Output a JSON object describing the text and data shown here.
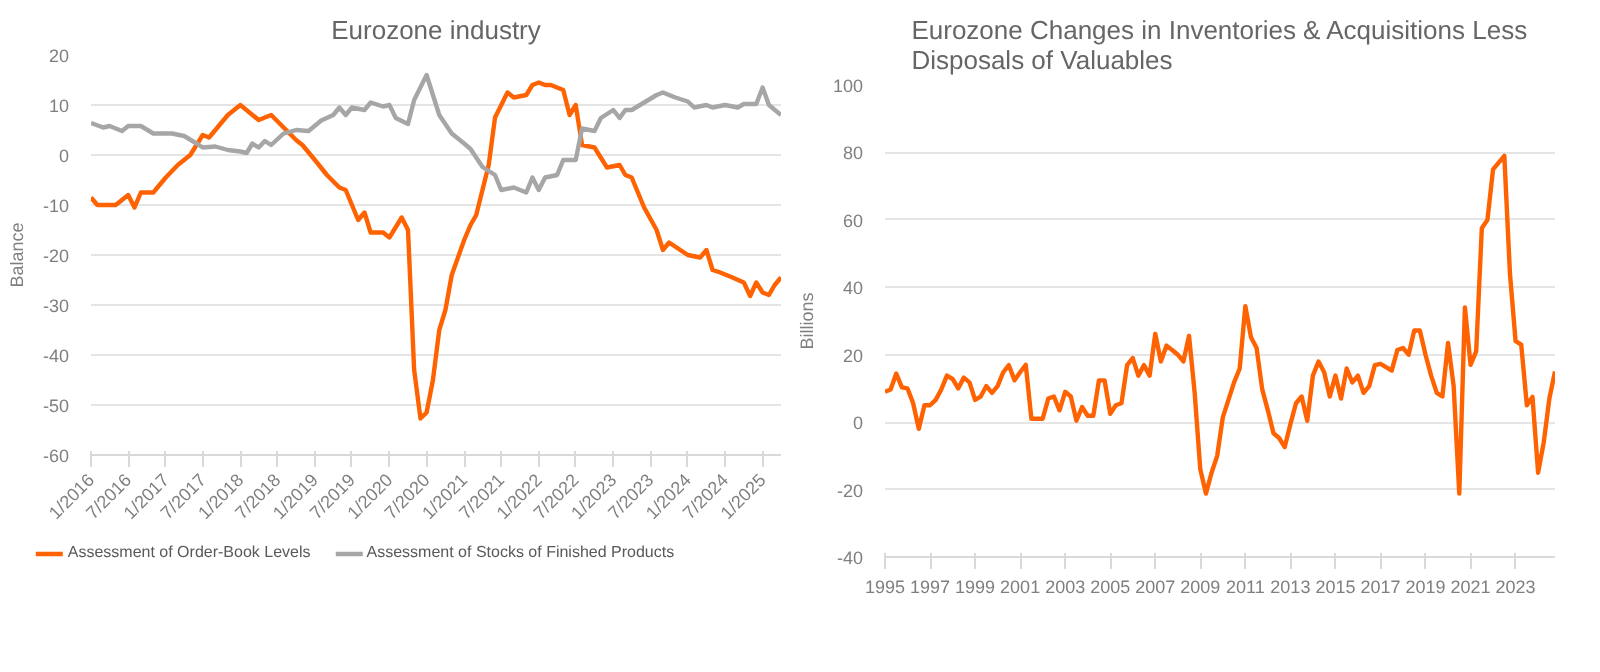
{
  "chart_data": [
    {
      "type": "line",
      "title": "Eurozone industry",
      "ylabel": "Balance",
      "ylim": [
        -60,
        20
      ],
      "yticks": [
        -60,
        -50,
        -40,
        -30,
        -20,
        -10,
        0,
        10,
        20
      ],
      "xlim": [
        "2016-01",
        "2025-04"
      ],
      "xticks": [
        {
          "value": "2016-01",
          "label": "1/2016"
        },
        {
          "value": "2016-07",
          "label": "7/2016"
        },
        {
          "value": "2017-01",
          "label": "1/2017"
        },
        {
          "value": "2017-07",
          "label": "7/2017"
        },
        {
          "value": "2018-01",
          "label": "1/2018"
        },
        {
          "value": "2018-07",
          "label": "7/2018"
        },
        {
          "value": "2019-01",
          "label": "1/2019"
        },
        {
          "value": "2019-07",
          "label": "7/2019"
        },
        {
          "value": "2020-01",
          "label": "1/2020"
        },
        {
          "value": "2020-07",
          "label": "7/2020"
        },
        {
          "value": "2021-01",
          "label": "1/2021"
        },
        {
          "value": "2021-07",
          "label": "7/2021"
        },
        {
          "value": "2022-01",
          "label": "1/2022"
        },
        {
          "value": "2022-07",
          "label": "7/2022"
        },
        {
          "value": "2023-01",
          "label": "1/2023"
        },
        {
          "value": "2023-07",
          "label": "7/2023"
        },
        {
          "value": "2024-01",
          "label": "1/2024"
        },
        {
          "value": "2024-07",
          "label": "7/2024"
        },
        {
          "value": "2025-01",
          "label": "1/2025"
        }
      ],
      "grid": "y",
      "legend": "bottom",
      "line_style": "solid",
      "marker": "none",
      "series": [
        {
          "name": "Assessment of Order-Book Levels",
          "color": "#ff6200",
          "x": [
            "2016-01",
            "2016-02",
            "2016-05",
            "2016-07",
            "2016-08",
            "2016-09",
            "2016-11",
            "2017-01",
            "2017-03",
            "2017-05",
            "2017-07",
            "2017-08",
            "2017-11",
            "2018-01",
            "2018-04",
            "2018-06",
            "2018-08",
            "2018-10",
            "2018-11",
            "2019-01",
            "2019-03",
            "2019-05",
            "2019-06",
            "2019-08",
            "2019-09",
            "2019-10",
            "2019-12",
            "2020-01",
            "2020-03",
            "2020-04",
            "2020-05",
            "2020-06",
            "2020-07",
            "2020-08",
            "2020-09",
            "2020-10",
            "2020-11",
            "2021-01",
            "2021-02",
            "2021-03",
            "2021-05",
            "2021-06",
            "2021-08",
            "2021-09",
            "2021-11",
            "2021-12",
            "2022-01",
            "2022-02",
            "2022-03",
            "2022-05",
            "2022-06",
            "2022-07",
            "2022-08",
            "2022-10",
            "2022-12",
            "2023-02",
            "2023-03",
            "2023-04",
            "2023-06",
            "2023-08",
            "2023-09",
            "2023-10",
            "2024-01",
            "2024-03",
            "2024-04",
            "2024-05",
            "2024-06",
            "2024-08",
            "2024-10",
            "2024-11",
            "2024-12",
            "2025-01",
            "2025-02",
            "2025-03",
            "2025-04"
          ],
          "values": [
            -8.5,
            -10,
            -10,
            -8,
            -10.5,
            -7.5,
            -7.5,
            -4.5,
            -2,
            0,
            4,
            3.5,
            8,
            10,
            7,
            8,
            5.5,
            3,
            2,
            -1,
            -4,
            -6.5,
            -7,
            -13,
            -11.5,
            -15.5,
            -15.5,
            -16.5,
            -12.5,
            -15,
            -43,
            -52.7,
            -51.5,
            -45,
            -35,
            -31,
            -24,
            -17,
            -14,
            -12,
            -2,
            7.5,
            12.5,
            11.5,
            12,
            14,
            14.5,
            14,
            14,
            13,
            8,
            10,
            2,
            1.5,
            -2.5,
            -2,
            -4,
            -4.5,
            -10.5,
            -15,
            -19,
            -17.5,
            -20,
            -20.5,
            -19,
            -23,
            -23.4,
            -24.4,
            -25.5,
            -28.2,
            -25.5,
            -27.5,
            -28,
            -26,
            -24.5
          ]
        },
        {
          "name": "Assessment of Stocks of Finished Products",
          "color": "#a6a6a6",
          "x": [
            "2016-01",
            "2016-03",
            "2016-04",
            "2016-06",
            "2016-07",
            "2016-09",
            "2016-11",
            "2017-02",
            "2017-04",
            "2017-06",
            "2017-07",
            "2017-09",
            "2017-11",
            "2018-01",
            "2018-02",
            "2018-03",
            "2018-04",
            "2018-05",
            "2018-06",
            "2018-08",
            "2018-10",
            "2018-12",
            "2019-02",
            "2019-04",
            "2019-05",
            "2019-06",
            "2019-07",
            "2019-09",
            "2019-10",
            "2019-12",
            "2020-01",
            "2020-02",
            "2020-04",
            "2020-05",
            "2020-07",
            "2020-09",
            "2020-11",
            "2021-01",
            "2021-02",
            "2021-04",
            "2021-06",
            "2021-07",
            "2021-09",
            "2021-11",
            "2021-12",
            "2022-01",
            "2022-02",
            "2022-04",
            "2022-05",
            "2022-07",
            "2022-08",
            "2022-10",
            "2022-11",
            "2023-01",
            "2023-02",
            "2023-03",
            "2023-04",
            "2023-06",
            "2023-08",
            "2023-09",
            "2023-11",
            "2024-01",
            "2024-02",
            "2024-04",
            "2024-05",
            "2024-07",
            "2024-09",
            "2024-10",
            "2024-12",
            "2025-01",
            "2025-02",
            "2025-04"
          ],
          "values": [
            6.4,
            5.5,
            5.8,
            4.8,
            5.8,
            5.8,
            4.3,
            4.3,
            3.8,
            2.3,
            1.5,
            1.7,
            1,
            0.7,
            0.4,
            2.3,
            1.5,
            2.8,
            2,
            4.3,
            5,
            4.8,
            6.9,
            8,
            9.5,
            8,
            9.5,
            9,
            10.5,
            9.7,
            10,
            7.4,
            6.2,
            11,
            16,
            8,
            4.3,
            2.3,
            1.2,
            -2.4,
            -4,
            -7,
            -6.5,
            -7.5,
            -4.5,
            -7,
            -4.5,
            -4,
            -1,
            -1,
            5.3,
            4.8,
            7.4,
            9,
            7.4,
            9,
            9,
            10.5,
            12,
            12.5,
            11.5,
            10.7,
            9.5,
            10,
            9.5,
            10,
            9.5,
            10.2,
            10.2,
            13.5,
            10,
            8
          ]
        }
      ]
    },
    {
      "type": "line",
      "title": "Eurozone Changes in Inventories & Acquisitions Less Disposals of Valuables",
      "ylabel": "Billions",
      "ylim": [
        -40,
        100
      ],
      "yticks": [
        -40,
        -20,
        0,
        20,
        40,
        60,
        80,
        100
      ],
      "xlim": [
        1995,
        2024.75
      ],
      "xticks": [
        1995,
        1997,
        1999,
        2001,
        2003,
        2005,
        2007,
        2009,
        2011,
        2013,
        2015,
        2017,
        2019,
        2021,
        2023
      ],
      "grid": "y",
      "line_style": "solid",
      "marker": "none",
      "series": [
        {
          "color": "#ff6200",
          "x": [
            1995,
            1995.25,
            1995.5,
            1995.75,
            1996,
            1996.25,
            1996.5,
            1996.75,
            1997,
            1997.25,
            1997.5,
            1997.75,
            1998,
            1998.25,
            1998.5,
            1998.75,
            1999,
            1999.25,
            1999.5,
            1999.75,
            2000,
            2000.25,
            2000.5,
            2000.75,
            2001,
            2001.25,
            2001.5,
            2001.75,
            2002,
            2002.25,
            2002.5,
            2002.75,
            2003,
            2003.25,
            2003.5,
            2003.75,
            2004,
            2004.25,
            2004.5,
            2004.75,
            2005,
            2005.25,
            2005.5,
            2005.75,
            2006,
            2006.25,
            2006.5,
            2006.75,
            2007,
            2007.25,
            2007.5,
            2007.75,
            2008,
            2008.25,
            2008.5,
            2008.75,
            2009,
            2009.25,
            2009.5,
            2009.75,
            2010,
            2010.25,
            2010.5,
            2010.75,
            2011,
            2011.25,
            2011.5,
            2011.75,
            2012,
            2012.25,
            2012.5,
            2012.75,
            2013,
            2013.25,
            2013.5,
            2013.75,
            2014,
            2014.25,
            2014.5,
            2014.75,
            2015,
            2015.25,
            2015.5,
            2015.75,
            2016,
            2016.25,
            2016.5,
            2016.75,
            2017,
            2017.25,
            2017.5,
            2017.75,
            2018,
            2018.25,
            2018.5,
            2018.75,
            2019,
            2019.25,
            2019.5,
            2019.75,
            2020,
            2020.25,
            2020.5,
            2020.75,
            2021,
            2021.25,
            2021.5,
            2021.75,
            2022,
            2022.25,
            2022.5,
            2022.75,
            2023,
            2023.25,
            2023.5,
            2023.75,
            2024,
            2024.25,
            2024.5,
            2024.75
          ],
          "values": [
            9,
            9.7,
            14.4,
            10.3,
            10,
            5.6,
            -2,
            5,
            5,
            6.6,
            9.7,
            13.8,
            12.8,
            10,
            13.2,
            11.8,
            6.6,
            7.6,
            10.7,
            8.7,
            10.7,
            14.8,
            16.9,
            12.4,
            14.8,
            17,
            1,
            1,
            1,
            7,
            7.6,
            3.5,
            9,
            7.6,
            0.4,
            4.5,
            1.9,
            1.9,
            12.4,
            12.4,
            2.5,
            5,
            5.6,
            16.9,
            19,
            13.8,
            16.9,
            13.8,
            26.2,
            18,
            22.7,
            21.4,
            20,
            18,
            25.6,
            8.7,
            -14,
            -21.2,
            -15,
            -10,
            1.4,
            6.6,
            11.8,
            15.9,
            34.4,
            25.2,
            22,
            9.7,
            3.5,
            -3.3,
            -4.7,
            -7.4,
            -0.6,
            5.6,
            7.6,
            0.4,
            13.8,
            18,
            14.8,
            7.6,
            13.8,
            7,
            15.9,
            11.8,
            13.8,
            8.7,
            10.7,
            16.9,
            17.3,
            16.3,
            15.3,
            21.4,
            22,
            20,
            27.2,
            27.2,
            20,
            13.8,
            8.7,
            7.6,
            23.5,
            10.7,
            -21.2,
            34,
            17,
            21,
            57.5,
            60,
            75,
            77,
            79,
            44,
            24,
            23,
            5,
            7.5,
            -15,
            -6,
            7,
            15
          ]
        }
      ]
    }
  ]
}
